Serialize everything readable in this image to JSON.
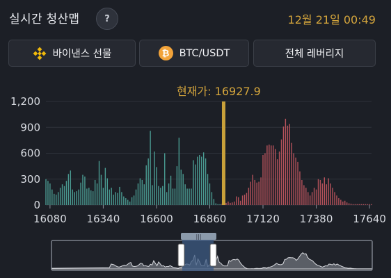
{
  "header": {
    "title": "실시간 청산맵",
    "help_label": "?",
    "datetime": "12월 21일 00:49"
  },
  "tabs": {
    "exchange": {
      "label": "바이낸스 선물",
      "icon": "binance-icon"
    },
    "pair": {
      "label": "BTC/USDT",
      "icon": "bitcoin-icon",
      "icon_glyph": "₿"
    },
    "leverage": {
      "label": "전체 레버리지"
    }
  },
  "current_price": {
    "label": "현재가:",
    "value": "16927.9",
    "price": 16927.9
  },
  "colors": {
    "background": "#1c1f26",
    "long_liquidation": "#4a9a91",
    "short_liquidation": "#b5525b",
    "current_price_line": "#c9a13a",
    "accent_text": "#d4a53c"
  },
  "chart_data": {
    "type": "bar",
    "y_ticks": [
      "1,200",
      "900",
      "600",
      "300",
      "0"
    ],
    "y_tick_values": [
      1200,
      900,
      600,
      300,
      0
    ],
    "ylim": [
      0,
      1200
    ],
    "x_ticks": [
      "16080",
      "16340",
      "16600",
      "16860",
      "17120",
      "17380",
      "17640"
    ],
    "x_tick_values": [
      16080,
      16340,
      16600,
      16860,
      17120,
      17380,
      17640
    ],
    "xlim": [
      16060,
      17650
    ],
    "bar_width": 10,
    "series": [
      {
        "x": [
          16060,
          16070,
          16080,
          16090,
          16100,
          16110,
          16120,
          16130,
          16140,
          16150,
          16160,
          16170,
          16180,
          16190,
          16200,
          16210,
          16220,
          16230,
          16240,
          16250,
          16260,
          16270,
          16280,
          16290,
          16300,
          16310,
          16320,
          16330,
          16340,
          16350,
          16360,
          16370,
          16380,
          16390,
          16400,
          16410,
          16420,
          16430,
          16440,
          16450,
          16460,
          16470,
          16480,
          16490,
          16500,
          16510,
          16520,
          16530,
          16540,
          16550,
          16560,
          16570,
          16580,
          16590,
          16600,
          16610,
          16620,
          16630,
          16640,
          16650,
          16660,
          16670,
          16680,
          16690,
          16700,
          16710,
          16720,
          16730,
          16740,
          16750,
          16760,
          16770,
          16780,
          16790,
          16800,
          16810,
          16820,
          16830,
          16840,
          16850,
          16860,
          16870,
          16880,
          16890,
          16900,
          16910
        ],
        "values": [
          300,
          280,
          250,
          180,
          130,
          120,
          150,
          200,
          240,
          220,
          280,
          360,
          400,
          180,
          150,
          160,
          180,
          260,
          350,
          330,
          190,
          200,
          170,
          160,
          290,
          250,
          510,
          350,
          200,
          430,
          310,
          180,
          200,
          120,
          150,
          140,
          210,
          150,
          100,
          80,
          60,
          40,
          90,
          110,
          180,
          250,
          310,
          290,
          240,
          460,
          540,
          860,
          230,
          620,
          440,
          220,
          200,
          220,
          600,
          150,
          250,
          340,
          190,
          190,
          450,
          780,
          410,
          360,
          240,
          190,
          190,
          190,
          520,
          470,
          560,
          580,
          560,
          610,
          540,
          360,
          250,
          150,
          70,
          20,
          10,
          10
        ],
        "color": "#4a9a91"
      },
      {
        "x": [
          16920,
          16930,
          16940,
          16950,
          16960,
          16970,
          16980,
          16990,
          17000,
          17010,
          17020,
          17030,
          17040,
          17050,
          17060,
          17070,
          17080,
          17090,
          17100,
          17110,
          17120,
          17130,
          17140,
          17150,
          17160,
          17170,
          17180,
          17190,
          17200,
          17210,
          17220,
          17230,
          17240,
          17250,
          17260,
          17270,
          17280,
          17290,
          17300,
          17310,
          17320,
          17330,
          17340,
          17350,
          17360,
          17370,
          17380,
          17390,
          17400,
          17410,
          17420,
          17430,
          17440,
          17450,
          17460,
          17470,
          17480,
          17490,
          17500,
          17510,
          17520,
          17530,
          17540,
          17550,
          17560,
          17570,
          17580,
          17590,
          17600,
          17610,
          17620,
          17630,
          17640,
          17650
        ],
        "values": [
          15,
          10,
          25,
          40,
          25,
          30,
          40,
          100,
          90,
          50,
          110,
          120,
          140,
          200,
          270,
          350,
          290,
          260,
          270,
          320,
          580,
          600,
          690,
          700,
          690,
          690,
          650,
          530,
          620,
          760,
          910,
          1000,
          920,
          940,
          720,
          600,
          550,
          500,
          390,
          290,
          230,
          200,
          150,
          110,
          150,
          200,
          180,
          300,
          290,
          250,
          320,
          240,
          310,
          250,
          200,
          150,
          110,
          80,
          60,
          40,
          50,
          30,
          20,
          15,
          10,
          10,
          10,
          10,
          10,
          10,
          10,
          10,
          10,
          10
        ],
        "color": "#b5525b"
      }
    ]
  },
  "navigator": {
    "handle_grip": "|||"
  }
}
